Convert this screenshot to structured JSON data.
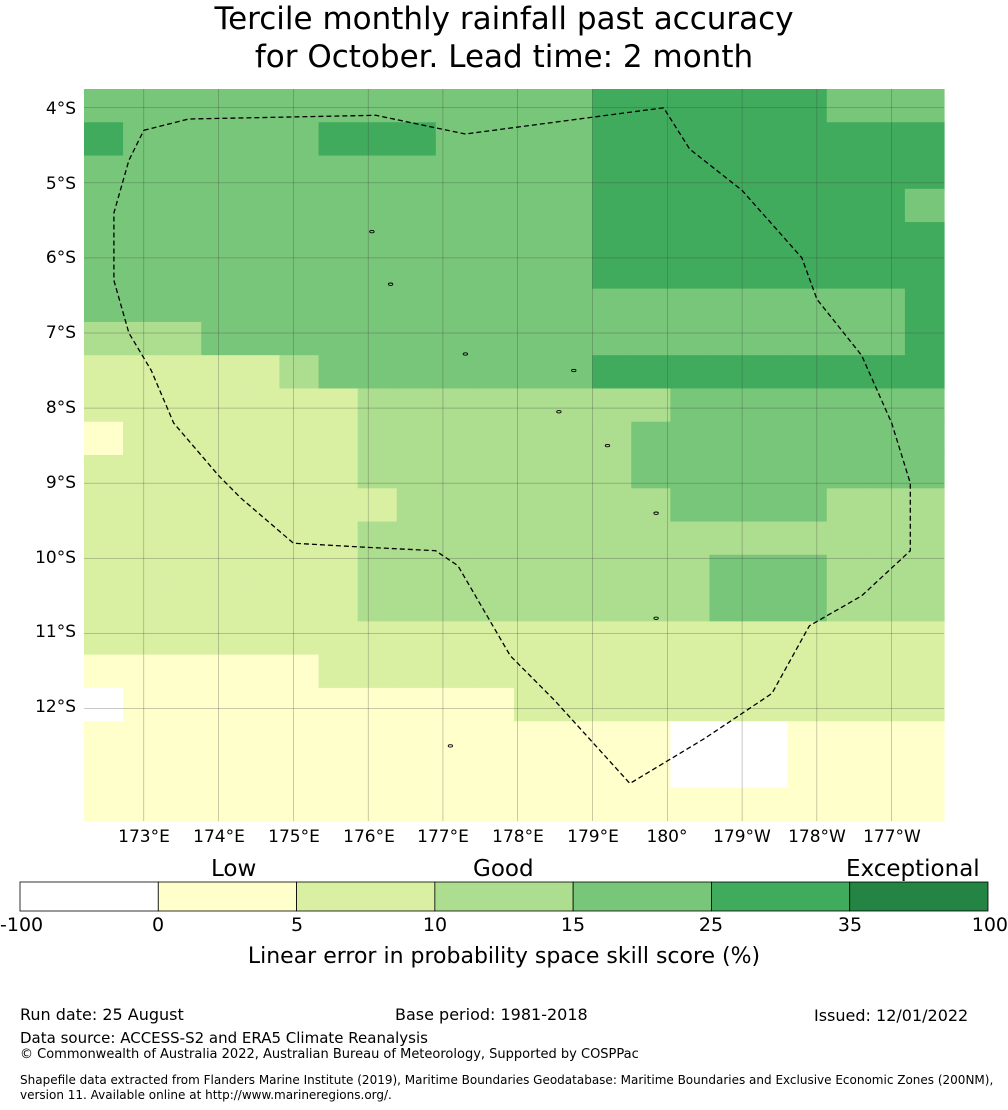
{
  "title": {
    "line1": "Tercile monthly rainfall past accuracy",
    "line2": "for October. Lead time: 2 month"
  },
  "map": {
    "lon_range": [
      172.2,
      183.7
    ],
    "lat_range": [
      -13.5,
      -3.75
    ],
    "cell_lon_step": 0.8333,
    "cell_lat_step": 0.5556,
    "grid_rows": [
      "4444444444444555555444",
      "5444445554444555555555",
      "4444444444444555555555",
      "4444444444444555555554",
      "4444444444444555555555",
      "4444444444444555555555",
      "4444444444444444444445",
      "3334444444444444444445",
      "2222234444444555555555",
      "2222222333333334444444",
      "1222222333333344444444",
      "2222222333333344444444",
      "2222222233333334444333",
      "2222222333333333333333",
      "2222222333333333444333",
      "2222222333333333444333",
      "2222222222222222222222",
      "1111112222222222222222",
      "0111111111122222222222",
      "1111111111111110001111",
      "1111111111111110001111",
      "1111111111111111111111"
    ],
    "cell_colors": [
      "#ffffff",
      "#ffffcc",
      "#d9f0a3",
      "#addd8e",
      "#78c679",
      "#41ab5d",
      "#238443"
    ],
    "lat_ticks": [
      "4°S",
      "5°S",
      "6°S",
      "7°S",
      "8°S",
      "9°S",
      "10°S",
      "11°S",
      "12°S"
    ],
    "lon_ticks": [
      "173°E",
      "174°E",
      "175°E",
      "176°E",
      "177°E",
      "178°E",
      "179°E",
      "180°",
      "179°W",
      "178°W",
      "177°W"
    ],
    "eez_boundary": [
      [
        173.0,
        -4.3
      ],
      [
        173.6,
        -4.15
      ],
      [
        176.1,
        -4.1
      ],
      [
        177.3,
        -4.35
      ],
      [
        179.95,
        -4.0
      ],
      [
        180.3,
        -4.55
      ],
      [
        181.0,
        -5.1
      ],
      [
        181.8,
        -6.0
      ],
      [
        182.0,
        -6.55
      ],
      [
        182.6,
        -7.3
      ],
      [
        183.0,
        -8.2
      ],
      [
        183.25,
        -9.0
      ],
      [
        183.25,
        -9.9
      ],
      [
        182.6,
        -10.5
      ],
      [
        181.9,
        -10.9
      ],
      [
        181.4,
        -11.8
      ],
      [
        180.5,
        -12.4
      ],
      [
        179.5,
        -13.0
      ],
      [
        178.5,
        -11.9
      ],
      [
        177.9,
        -11.3
      ],
      [
        177.2,
        -10.1
      ],
      [
        176.9,
        -9.9
      ],
      [
        175.9,
        -9.85
      ],
      [
        175.0,
        -9.8
      ],
      [
        174.3,
        -9.2
      ],
      [
        174.0,
        -8.9
      ],
      [
        173.4,
        -8.2
      ],
      [
        173.1,
        -7.5
      ],
      [
        172.8,
        -7.0
      ],
      [
        172.6,
        -6.3
      ],
      [
        172.6,
        -5.4
      ],
      [
        172.8,
        -4.7
      ],
      [
        173.0,
        -4.3
      ]
    ],
    "islands": [
      [
        176.05,
        -5.65
      ],
      [
        176.3,
        -6.35
      ],
      [
        177.3,
        -7.28
      ],
      [
        178.75,
        -7.5
      ],
      [
        178.55,
        -8.05
      ],
      [
        179.2,
        -8.5
      ],
      [
        179.85,
        -9.4
      ],
      [
        179.85,
        -10.8
      ],
      [
        177.1,
        -12.5
      ]
    ]
  },
  "colorbar": {
    "categories": [
      "Low",
      "Good",
      "Exceptional"
    ],
    "ticks": [
      "-100",
      "0",
      "5",
      "10",
      "15",
      "25",
      "35",
      "100"
    ],
    "colors": [
      "#ffffff",
      "#ffffcc",
      "#d9f0a3",
      "#addd8e",
      "#78c679",
      "#41ab5d",
      "#238443"
    ],
    "label": "Linear error in probability space skill score (%)"
  },
  "footer": {
    "run_date": "Run date: 25 August",
    "base_period": "Base period: 1981-2018",
    "issued": "Issued: 12/01/2022",
    "data_source": "Data source: ACCESS-S2 and ERA5 Climate Reanalysis",
    "copyright": "© Commonwealth of Australia 2022, Australian Bureau of Meteorology, Supported by COSPPac",
    "shapefile_line1": "Shapefile data extracted from Flanders Marine Institute (2019), Maritime Boundaries Geodatabase: Maritime Boundaries and Exclusive Economic Zones (200NM),",
    "shapefile_line2": "version 11. Available online at http://www.marineregions.org/."
  }
}
